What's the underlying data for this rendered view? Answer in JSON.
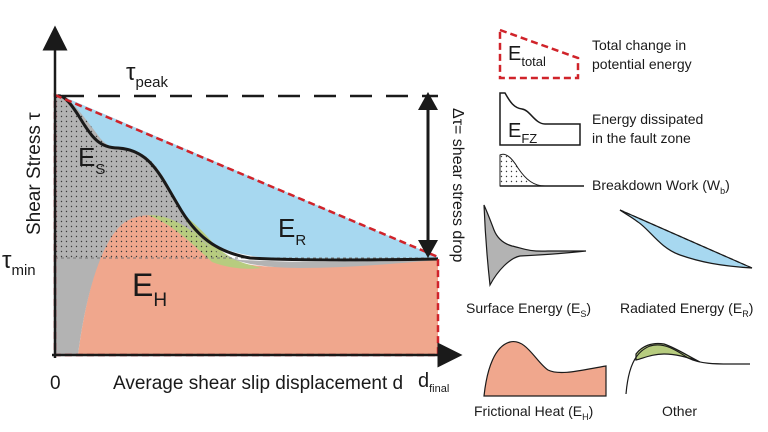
{
  "axes": {
    "y_label": "Shear Stress τ",
    "x_label": "Average shear slip displacement d",
    "origin_label": "0",
    "x_end_label": {
      "main": "d",
      "sub": "final"
    }
  },
  "stress_levels": {
    "peak": {
      "symbol": "τ",
      "sub": "peak"
    },
    "min": {
      "symbol": "τ",
      "sub": "min"
    }
  },
  "stress_drop_label": "Δτ= shear stress drop",
  "regions": {
    "surface": {
      "main": "E",
      "sub": "S"
    },
    "radiated": {
      "main": "E",
      "sub": "R"
    },
    "heat": {
      "main": "E",
      "sub": "H"
    }
  },
  "legend": {
    "total": {
      "symbol_main": "E",
      "symbol_sub": "total",
      "line1": "Total change in",
      "line2": "potential energy"
    },
    "fault_zone": {
      "symbol_main": "E",
      "symbol_sub": "FZ",
      "line1": "Energy dissipated",
      "line2": "in the fault zone"
    },
    "breakdown": {
      "text": "Breakdown Work (W",
      "sub": "b",
      "close": ")"
    }
  },
  "panels": {
    "surface": {
      "text": "Surface Energy (E",
      "sub": "S",
      "close": ")"
    },
    "radiated": {
      "text": "Radiated Energy (E",
      "sub": "R",
      "close": ")"
    },
    "heat": {
      "text": "Frictional Heat (E",
      "sub": "H",
      "close": ")"
    },
    "other": {
      "text": "Other"
    }
  },
  "colors": {
    "surface_energy": "#b3b3b3",
    "radiated_energy": "#a7d8f0",
    "frictional_heat": "#f0a78d",
    "other": "#b7cc7f",
    "total_outline": "#d0232a",
    "curve": "#1a1a1a"
  }
}
